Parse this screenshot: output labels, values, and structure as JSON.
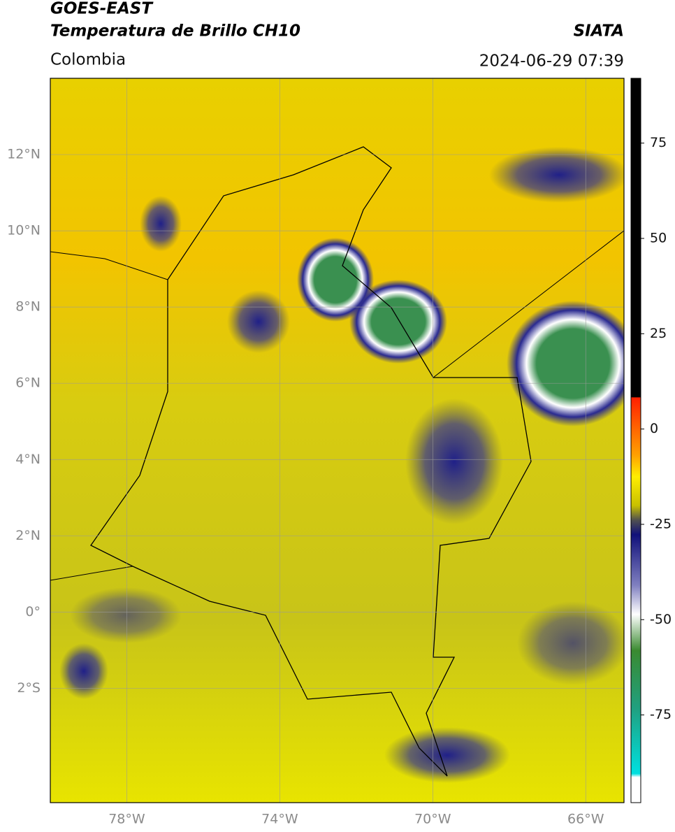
{
  "header": {
    "title": "GOES-EAST",
    "subtitle": "Temperatura de Brillo CH10",
    "region": "Colombia",
    "source": "SIATA",
    "datetime": "2024-06-29 07:39"
  },
  "map": {
    "xlim": [
      -80,
      -65
    ],
    "ylim": [
      -5,
      14
    ],
    "xticks": [
      {
        "value": -78,
        "label": "78°W"
      },
      {
        "value": -74,
        "label": "74°W"
      },
      {
        "value": -70,
        "label": "70°W"
      },
      {
        "value": -66,
        "label": "66°W"
      }
    ],
    "yticks": [
      {
        "value": 12,
        "label": "12°N"
      },
      {
        "value": 10,
        "label": "10°N"
      },
      {
        "value": 8,
        "label": "8°N"
      },
      {
        "value": 6,
        "label": "6°N"
      },
      {
        "value": 4,
        "label": "4°N"
      },
      {
        "value": 2,
        "label": "2°N"
      },
      {
        "value": 0,
        "label": "0°"
      },
      {
        "value": -2,
        "label": "2°S"
      }
    ],
    "grid": true
  },
  "colorbar": {
    "lim": [
      -98,
      92
    ],
    "ticks": [
      75,
      50,
      25,
      0,
      -25,
      -50,
      -75
    ]
  }
}
